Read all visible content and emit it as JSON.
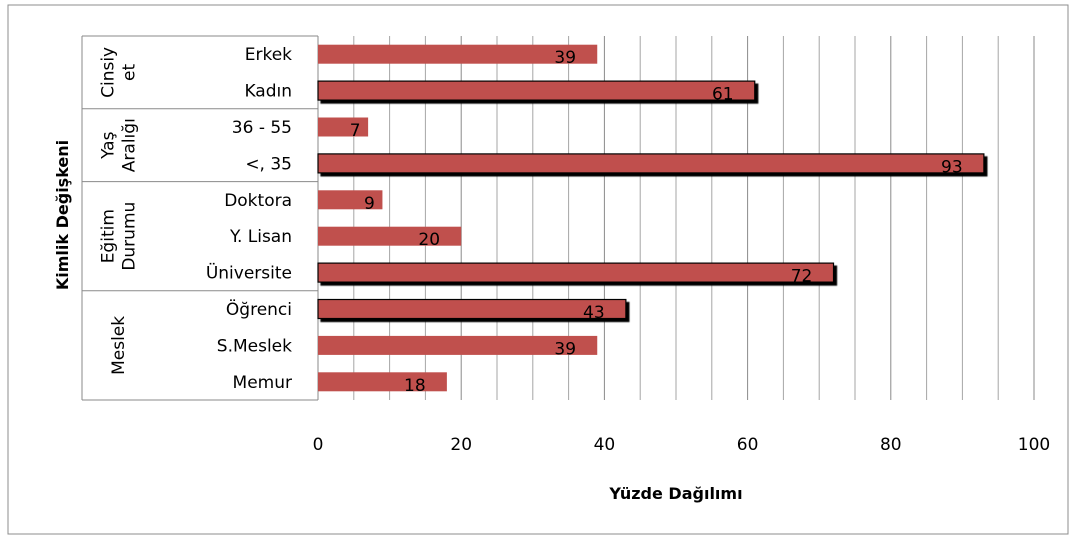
{
  "chart_data": {
    "type": "bar",
    "orientation": "horizontal",
    "xlabel": "Yüzde Dağılımı",
    "ylabel": "Kimlik Değişkeni",
    "xlim": [
      0,
      100
    ],
    "xticks": [
      "0",
      "20",
      "40",
      "60",
      "80",
      "100"
    ],
    "grid": "vertical minor lines",
    "bar_color": "#c0504d",
    "groups": [
      {
        "label_lines": [
          "Cinsiy",
          "et"
        ],
        "categories": [
          "Erkek",
          "Kadın"
        ],
        "values": [
          39,
          61
        ]
      },
      {
        "label_lines": [
          "Yaş",
          "Aralığı"
        ],
        "categories": [
          "36 - 55",
          "<, 35"
        ],
        "values": [
          7,
          93
        ]
      },
      {
        "label_lines": [
          "Eğitim",
          "Durumu"
        ],
        "categories": [
          "Doktora",
          "Y. Lisan",
          "Üniversite"
        ],
        "values": [
          9,
          20,
          72
        ]
      },
      {
        "label_lines": [
          "Meslek"
        ],
        "categories": [
          "Öğrenci",
          "S.Meslek",
          "Memur"
        ],
        "values": [
          43,
          39,
          18
        ]
      }
    ],
    "highlighted": [
      "Kadın",
      "<, 35",
      "Üniversite",
      "Öğrenci"
    ]
  }
}
